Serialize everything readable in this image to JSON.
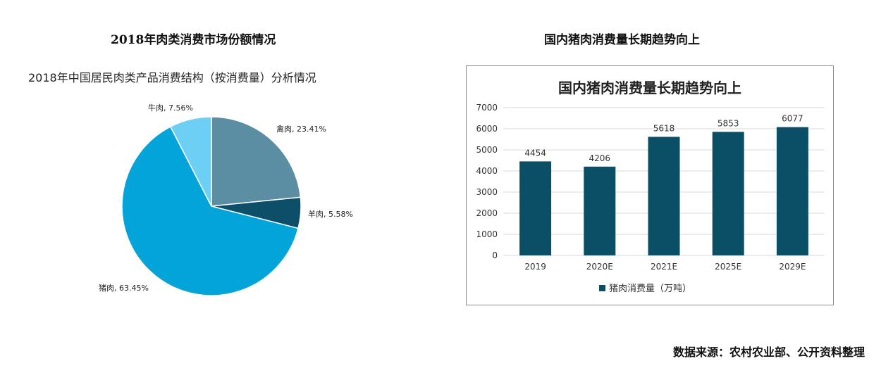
{
  "captions": {
    "left": "2018年肉类消费市场份额情况",
    "right": "国内猪肉消费量长期趋势向上",
    "source": "数据来源：农村农业部、公开资料整理"
  },
  "chart_data": [
    {
      "type": "pie",
      "title": "2018年中国居民肉类产品消费结构（按消费量）分析情况",
      "slices": [
        {
          "label": "禽肉, 23.41%",
          "value": 23.41,
          "color": "#5b8ea3"
        },
        {
          "label": "羊肉, 5.58%",
          "value": 5.58,
          "color": "#0d4e68"
        },
        {
          "label": "猪肉, 63.45%",
          "value": 63.45,
          "color": "#02a4d9"
        },
        {
          "label": "牛肉, 7.56%",
          "value": 7.56,
          "color": "#6ccff3"
        }
      ]
    },
    {
      "type": "bar",
      "title": "国内猪肉消费量长期趋势向上",
      "categories": [
        "2019",
        "2020E",
        "2021E",
        "2025E",
        "2029E"
      ],
      "series": [
        {
          "name": "猪肉消费量（万吨）",
          "values": [
            4454,
            4206,
            5618,
            5853,
            6077
          ],
          "color": "#0b4f66"
        }
      ],
      "ylim": [
        0,
        7000
      ],
      "yticks": [
        "0",
        "1000",
        "2000",
        "3000",
        "4000",
        "5000",
        "6000",
        "7000"
      ],
      "grid": true,
      "legend": "bottom"
    }
  ]
}
